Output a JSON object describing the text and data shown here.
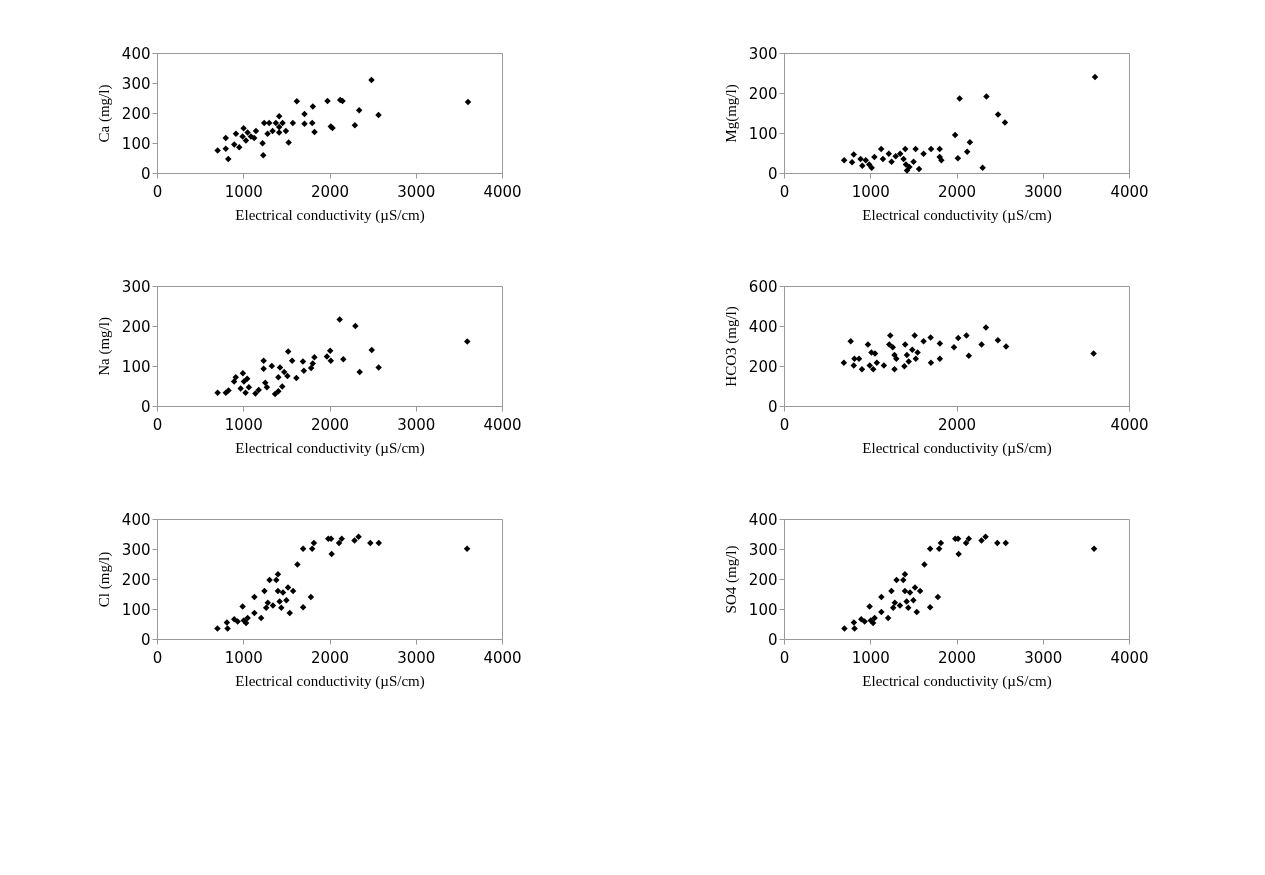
{
  "chart_data": [
    {
      "type": "scatter",
      "xlabel": "Electrical  conductivity (µS/cm)",
      "ylabel": "Ca (mg/l)",
      "marker": "diamond",
      "grid": false,
      "xlim": [
        0,
        4000
      ],
      "xticks": [
        0,
        1000,
        2000,
        3000,
        4000
      ],
      "ylim": [
        0,
        400
      ],
      "yticks": [
        0,
        100,
        200,
        300,
        400
      ],
      "series": [
        {
          "color": "#000000",
          "x": [
            703,
            797,
            797,
            826,
            896,
            915,
            954,
            992,
            1004,
            1031,
            1050,
            1089,
            1147,
            1127,
            1224,
            1232,
            1243,
            1282,
            1301,
            1340,
            1378,
            1417,
            1417,
            1417,
            1456,
            1494,
            1526,
            1575,
            1621,
            1710,
            1710,
            1800,
            1807,
            1826,
            1977,
            2015,
            2035,
            2124,
            2151,
            2294,
            2344,
            2487,
            2568,
            3606
          ],
          "values": [
            75,
            81,
            117,
            47,
            95,
            131,
            86,
            122,
            149,
            108,
            135,
            122,
            140,
            117,
            99,
            59,
            167,
            131,
            167,
            140,
            167,
            189,
            153,
            135,
            167,
            140,
            102,
            167,
            239,
            197,
            164,
            167,
            222,
            137,
            240,
            155,
            150,
            243,
            240,
            159,
            209,
            310,
            193,
            237
          ]
        }
      ]
    },
    {
      "type": "scatter",
      "xlabel": "Electrical  conductivity (µS/cm)",
      "ylabel": "Mg(mg/l)",
      "marker": "diamond",
      "grid": false,
      "xlim": [
        0,
        4000
      ],
      "xticks": [
        0,
        1000,
        2000,
        3000,
        4000
      ],
      "ylim": [
        0,
        300
      ],
      "yticks": [
        0,
        100,
        200,
        300
      ],
      "series": [
        {
          "color": "#000000",
          "x": [
            697,
            809,
            789,
            888,
            908,
            948,
            988,
            1016,
            1048,
            1127,
            1147,
            1215,
            1247,
            1295,
            1347,
            1386,
            1406,
            1414,
            1426,
            1454,
            1502,
            1526,
            1566,
            1618,
            1705,
            1805,
            1805,
            1825,
            1984,
            2016,
            2036,
            2124,
            2155,
            2303,
            2347,
            2482,
            2562,
            3606
          ],
          "values": [
            32,
            46,
            27,
            35,
            18,
            32,
            21,
            13,
            40,
            60,
            35,
            48,
            28,
            42,
            48,
            35,
            60,
            21,
            6,
            15,
            28,
            60,
            10,
            48,
            60,
            60,
            40,
            32,
            95,
            37,
            186,
            53,
            77,
            13,
            191,
            146,
            126,
            240
          ]
        }
      ]
    },
    {
      "type": "scatter",
      "xlabel": "Electrical  conductivity (µS/cm)",
      "ylabel": "Na (mg/l)",
      "marker": "diamond",
      "grid": false,
      "xlim": [
        0,
        4000
      ],
      "xticks": [
        0,
        1000,
        2000,
        3000,
        4000
      ],
      "ylim": [
        0,
        300
      ],
      "yticks": [
        0,
        100,
        200,
        300
      ],
      "series": [
        {
          "color": "#000000",
          "x": [
            703,
            798,
            829,
            894,
            913,
            970,
            996,
            1008,
            1027,
            1046,
            1065,
            1141,
            1179,
            1236,
            1236,
            1255,
            1274,
            1331,
            1369,
            1407,
            1407,
            1426,
            1452,
            1475,
            1512,
            1521,
            1567,
            1616,
            1692,
            1703,
            1787,
            1806,
            1825,
            1970,
            2008,
            2015,
            2118,
            2160,
            2300,
            2350,
            2490,
            2570,
            3597
          ],
          "values": [
            33,
            33,
            39,
            61,
            72,
            44,
            82,
            61,
            33,
            68,
            47,
            31,
            40,
            113,
            93,
            58,
            47,
            100,
            30,
            37,
            72,
            96,
            49,
            85,
            75,
            136,
            113,
            70,
            111,
            88,
            95,
            106,
            122,
            124,
            138,
            113,
            216,
            117,
            200,
            85,
            140,
            96,
            161
          ]
        }
      ]
    },
    {
      "type": "scatter",
      "xlabel": "Electrical  conductivity (µS/cm)",
      "ylabel": "HCO3  (mg/l)",
      "marker": "diamond",
      "grid": false,
      "xlim": [
        0,
        4000
      ],
      "xticks": [
        0,
        2000,
        4000
      ],
      "ylim": [
        0,
        600
      ],
      "yticks": [
        0,
        200,
        400,
        600
      ],
      "series": [
        {
          "color": "#000000",
          "x": [
            694,
            773,
            809,
            817,
            870,
            904,
            973,
            994,
            1014,
            1035,
            1055,
            1076,
            1158,
            1232,
            1220,
            1261,
            1281,
            1281,
            1302,
            1405,
            1396,
            1425,
            1446,
            1487,
            1515,
            1528,
            1549,
            1618,
            1700,
            1704,
            1807,
            1807,
            1971,
            2020,
            2115,
            2143,
            2291,
            2341,
            2480,
            2575,
            3590
          ],
          "values": [
            216,
            324,
            203,
            236,
            236,
            184,
            307,
            203,
            268,
            184,
            262,
            216,
            203,
            353,
            307,
            294,
            184,
            255,
            236,
            307,
            199,
            255,
            223,
            281,
            353,
            236,
            268,
            324,
            343,
            216,
            236,
            313,
            294,
            340,
            353,
            251,
            307,
            392,
            329,
            297,
            262
          ]
        }
      ]
    },
    {
      "type": "scatter",
      "xlabel": "Electrical  conductivity (µS/cm)",
      "ylabel": "Cl  (mg/l)",
      "marker": "diamond",
      "grid": false,
      "xlim": [
        0,
        4000
      ],
      "xticks": [
        0,
        1000,
        2000,
        3000,
        4000
      ],
      "ylim": [
        0,
        400
      ],
      "yticks": [
        0,
        100,
        200,
        300,
        400
      ],
      "series": [
        {
          "color": "#000000",
          "x": [
            701,
            810,
            818,
            896,
            935,
            993,
            1006,
            1033,
            1051,
            1129,
            1129,
            1207,
            1246,
            1266,
            1285,
            1305,
            1344,
            1383,
            1402,
            1402,
            1422,
            1441,
            1461,
            1500,
            1519,
            1539,
            1578,
            1628,
            1694,
            1694,
            1784,
            1799,
            1819,
            1986,
            2018,
            2025,
            2111,
            2142,
            2290,
            2337,
            2473,
            2571,
            3595
          ],
          "values": [
            35,
            55,
            35,
            66,
            58,
            108,
            62,
            53,
            70,
            140,
            87,
            70,
            160,
            104,
            121,
            197,
            112,
            197,
            216,
            160,
            125,
            104,
            155,
            129,
            172,
            87,
            160,
            248,
            106,
            301,
            140,
            301,
            320,
            334,
            334,
            283,
            320,
            334,
            328,
            341,
            320,
            320,
            301
          ]
        }
      ]
    },
    {
      "type": "scatter",
      "xlabel": "Electrical  conductivity (µS/cm)",
      "ylabel": "SO4 (mg/l)",
      "marker": "diamond",
      "grid": false,
      "xlim": [
        0,
        4000
      ],
      "xticks": [
        0,
        1000,
        2000,
        3000,
        4000
      ],
      "ylim": [
        0,
        400
      ],
      "yticks": [
        0,
        100,
        200,
        300,
        400
      ],
      "series": [
        {
          "color": "#000000",
          "x": [
            701,
            810,
            818,
            896,
            935,
            993,
            1006,
            1033,
            1051,
            1129,
            1129,
            1207,
            1246,
            1266,
            1285,
            1305,
            1344,
            1383,
            1402,
            1402,
            1422,
            1441,
            1461,
            1500,
            1519,
            1539,
            1578,
            1628,
            1694,
            1694,
            1784,
            1799,
            1819,
            1986,
            2018,
            2025,
            2111,
            2142,
            2290,
            2337,
            2473,
            2571,
            3595
          ],
          "values": [
            35,
            55,
            35,
            66,
            58,
            108,
            62,
            53,
            70,
            140,
            90,
            70,
            160,
            104,
            121,
            197,
            112,
            197,
            216,
            160,
            125,
            104,
            155,
            129,
            172,
            90,
            160,
            248,
            106,
            301,
            140,
            301,
            320,
            334,
            334,
            283,
            320,
            334,
            328,
            341,
            320,
            320,
            301
          ]
        }
      ]
    }
  ]
}
